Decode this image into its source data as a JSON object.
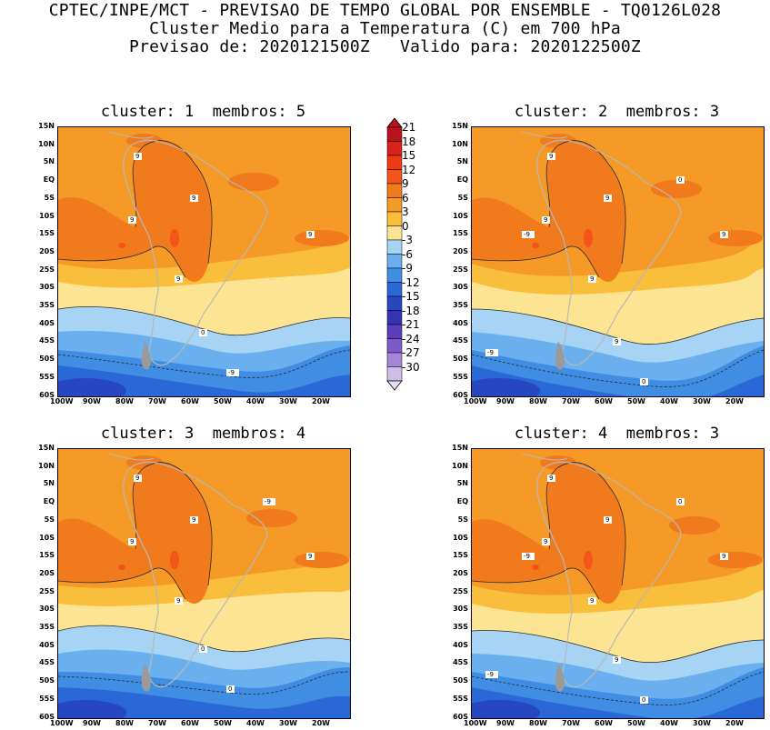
{
  "header": {
    "line1": "CPTEC/INPE/MCT - PREVISAO DE TEMPO GLOBAL POR ENSEMBLE - TQ0126L028",
    "line2": "Cluster Medio para a Temperatura (C) em 700 hPa",
    "line3": "Previsao de: 2020121500Z   Valido para: 2020122500Z"
  },
  "panels": [
    {
      "title": "cluster: 1  membros: 5",
      "contour_labels": [
        "9",
        "9",
        "9",
        "9",
        "9",
        "0",
        "-9"
      ]
    },
    {
      "title": "cluster: 2  membros: 3",
      "contour_labels": [
        "9",
        "9",
        "9",
        "9",
        "9",
        "9",
        "0",
        "0",
        "-9",
        "-9"
      ]
    },
    {
      "title": "cluster: 3  membros: 4",
      "contour_labels": [
        "9",
        "9",
        "9",
        "9",
        "9",
        "0",
        "0",
        "-9"
      ]
    },
    {
      "title": "cluster: 4  membros: 3",
      "contour_labels": [
        "9",
        "9",
        "9",
        "9",
        "9",
        "9",
        "0",
        "0",
        "-9",
        "-9"
      ]
    }
  ],
  "axes": {
    "lat_labels": [
      "15N",
      "10N",
      "5N",
      "EQ",
      "5S",
      "10S",
      "15S",
      "20S",
      "25S",
      "30S",
      "35S",
      "40S",
      "45S",
      "50S",
      "55S",
      "60S"
    ],
    "lon_labels": [
      "100W",
      "90W",
      "80W",
      "70W",
      "60W",
      "50W",
      "40W",
      "30W",
      "20W"
    ]
  },
  "colorbar": {
    "labels": [
      "21",
      "18",
      "15",
      "12",
      "9",
      "6",
      "3",
      "0",
      "-3",
      "-6",
      "-9",
      "-12",
      "-15",
      "-18",
      "-21",
      "-24",
      "-27",
      "-30"
    ],
    "colors": [
      "#b8121c",
      "#d7231b",
      "#ec3a16",
      "#f3541a",
      "#f07a1c",
      "#f59a26",
      "#f9be3b",
      "#fde493",
      "#a7d4f5",
      "#6bb0ee",
      "#3f8ee3",
      "#2a68d6",
      "#2747c1",
      "#3832b3",
      "#5b3cb9",
      "#7d5ac9",
      "#a784d7",
      "#cfbde9"
    ]
  },
  "colors": {
    "land_outline": "#b8b8b8",
    "contour": "#2b2b2b"
  }
}
